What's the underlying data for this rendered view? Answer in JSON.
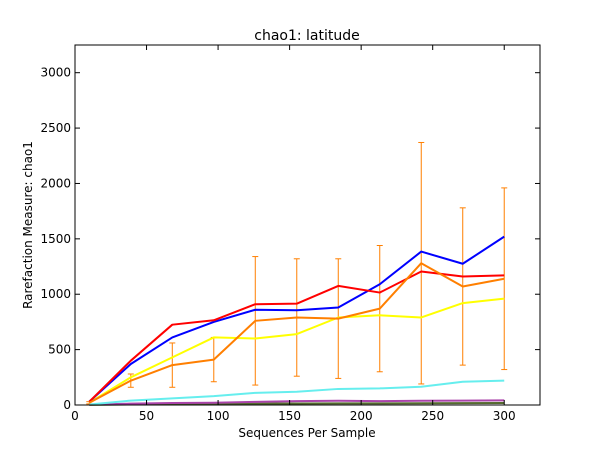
{
  "chart_data": {
    "type": "line",
    "title": "chao1: latitude",
    "xlabel": "Sequences Per Sample",
    "ylabel": "Rarefaction Measure: chao1",
    "xlim": [
      0,
      325
    ],
    "ylim": [
      0,
      3250
    ],
    "xticks": [
      0,
      50,
      100,
      150,
      200,
      250,
      300
    ],
    "yticks": [
      0,
      500,
      1000,
      1500,
      2000,
      2500,
      3000
    ],
    "grid": false,
    "legend": "none",
    "x": [
      10,
      39,
      68,
      97,
      126,
      155,
      184,
      213,
      242,
      271,
      300
    ],
    "series": [
      {
        "color": "#ff7f00",
        "values": [
          20,
          220,
          360,
          410,
          760,
          790,
          780,
          870,
          1280,
          1070,
          1140
        ],
        "error": [
          10,
          60,
          200,
          200,
          580,
          530,
          540,
          570,
          1090,
          710,
          820
        ]
      },
      {
        "color": "#ff0000",
        "values": [
          30,
          400,
          725,
          765,
          910,
          915,
          1075,
          1015,
          1205,
          1160,
          1170
        ]
      },
      {
        "color": "#0000ff",
        "values": [
          30,
          370,
          610,
          750,
          860,
          855,
          880,
          1090,
          1385,
          1275,
          1520
        ]
      },
      {
        "color": "#ffff00",
        "values": [
          20,
          250,
          430,
          610,
          600,
          640,
          790,
          810,
          790,
          920,
          960
        ]
      },
      {
        "color": "#66eeee",
        "values": [
          5,
          40,
          60,
          80,
          110,
          120,
          145,
          150,
          165,
          210,
          220
        ]
      },
      {
        "color": "#aa44aa",
        "values": [
          3,
          12,
          18,
          20,
          28,
          35,
          38,
          35,
          38,
          40,
          42
        ]
      },
      {
        "color": "#556b2f",
        "values": [
          1,
          5,
          8,
          10,
          12,
          14,
          15,
          15,
          16,
          17,
          18
        ]
      }
    ]
  }
}
